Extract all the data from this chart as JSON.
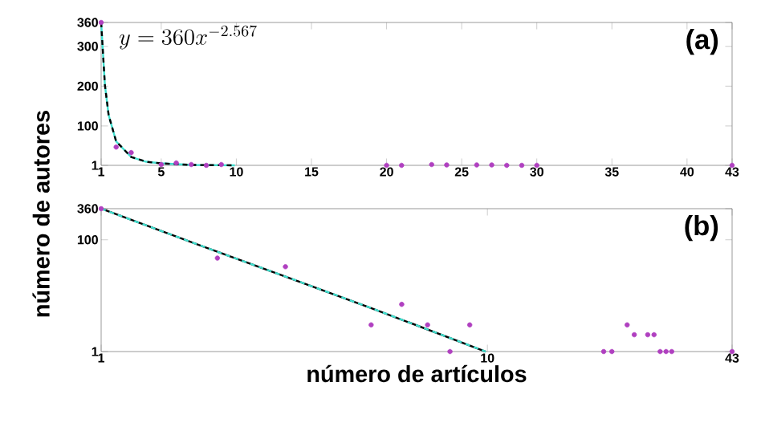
{
  "chart_data": [
    {
      "type": "scatter",
      "ylabel": "número de autores",
      "annotations": [
        "y = 360x^{-2.567}",
        "(a)"
      ],
      "xlim": [
        1,
        43
      ],
      "ylim": [
        1,
        360
      ],
      "xticks": [
        1,
        5,
        10,
        15,
        20,
        25,
        30,
        35,
        40,
        43
      ],
      "yticks": [
        1,
        100,
        200,
        300,
        360
      ],
      "series": [
        {
          "marker": "circle",
          "color": "#b040c0",
          "x": [
            1,
            2,
            3,
            5,
            6,
            7,
            8,
            9,
            20,
            21,
            23,
            24,
            26,
            27,
            28,
            29,
            30,
            43
          ],
          "values": [
            360,
            47,
            33,
            3,
            7,
            3,
            1,
            3,
            1,
            1,
            3,
            2,
            2,
            2,
            1,
            1,
            1,
            1
          ]
        },
        {
          "type": "line",
          "line_style": "solid",
          "color": "#40e0d0",
          "x": [
            1,
            1.25,
            1.5,
            2,
            3,
            4,
            5,
            7,
            9.9
          ],
          "values": [
            360,
            203,
            127,
            61,
            22,
            10,
            6,
            2,
            1
          ]
        },
        {
          "type": "line",
          "line_style": "dashed",
          "color": "#000000",
          "x": [
            1,
            1.25,
            1.5,
            2,
            3,
            4,
            5,
            7,
            9.9
          ],
          "values": [
            360,
            203,
            127,
            61,
            22,
            10,
            6,
            2,
            1
          ]
        }
      ]
    },
    {
      "type": "scatter",
      "xlabel": "número de artículos",
      "annotations": [
        "(b)"
      ],
      "log": "xy",
      "xlim": [
        1,
        43
      ],
      "ylim": [
        1,
        360
      ],
      "xticks": [
        1,
        10,
        43
      ],
      "yticks": [
        1,
        100,
        360
      ],
      "series": [
        {
          "marker": "circle",
          "color": "#b040c0",
          "x": [
            1,
            2,
            3,
            5,
            6,
            7,
            8,
            9,
            20,
            21,
            23,
            24,
            26,
            27,
            28,
            29,
            30,
            43
          ],
          "values": [
            360,
            47,
            33,
            3,
            7,
            3,
            1,
            3,
            1,
            1,
            3,
            2,
            2,
            2,
            1,
            1,
            1,
            1
          ]
        },
        {
          "type": "line",
          "line_style": "solid",
          "color": "#000000",
          "x": [
            1,
            2,
            3,
            5,
            9.9
          ],
          "values": [
            360,
            61,
            22,
            6,
            1
          ]
        },
        {
          "type": "line",
          "line_style": "dashed",
          "color": "#40e0d0",
          "x": [
            1,
            2,
            3,
            5,
            9.9
          ],
          "values": [
            360,
            61,
            22,
            6,
            1
          ]
        }
      ]
    }
  ]
}
